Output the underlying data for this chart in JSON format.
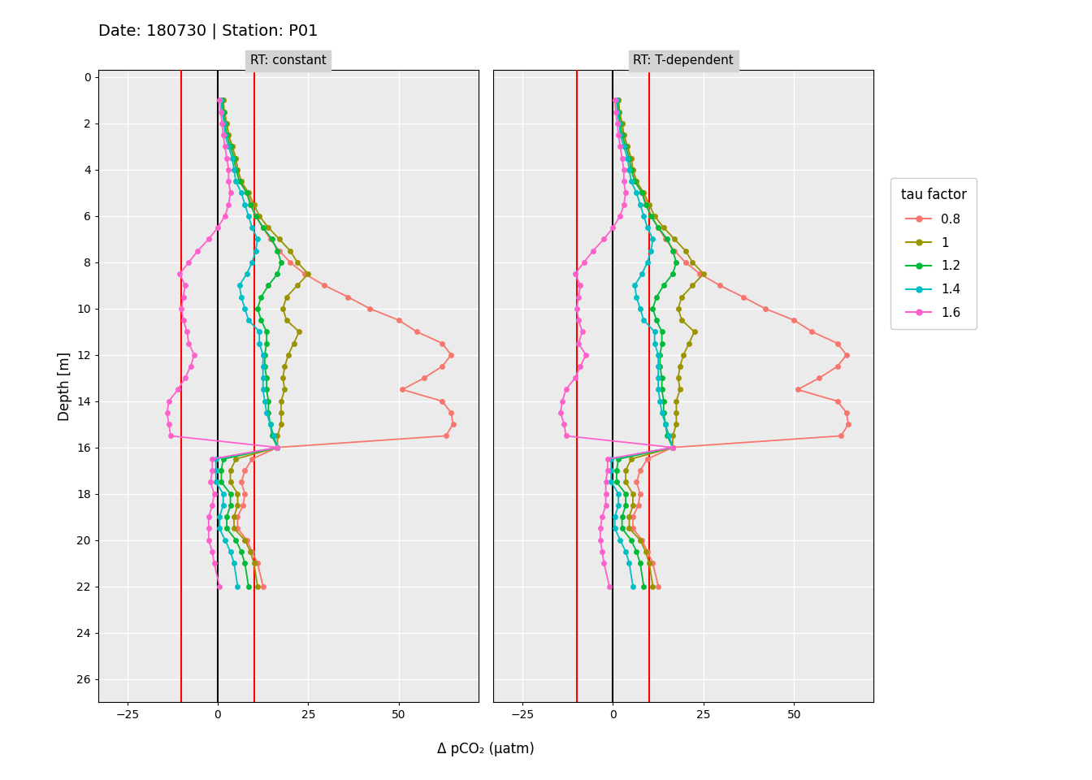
{
  "title": "Date: 180730 | Station: P01",
  "panel_labels": [
    "RT: constant",
    "RT: T-dependent"
  ],
  "ylabel": "Depth [m]",
  "xlabel": "Δ pCO₂ (µatm)",
  "depth": [
    1,
    1.5,
    2,
    2.5,
    3,
    3.5,
    4,
    4.5,
    5,
    5.5,
    6,
    6.5,
    7,
    7.5,
    8,
    8.5,
    9,
    9.5,
    10,
    10.5,
    11,
    11.5,
    12,
    12.5,
    13,
    13.5,
    14,
    14.5,
    15,
    15.5,
    16,
    16.5,
    17,
    17.5,
    18,
    18.5,
    19,
    19.5,
    20,
    20.5,
    21,
    22
  ],
  "ylim": [
    27.0,
    -0.3
  ],
  "xlim": [
    -33,
    72
  ],
  "xticks": [
    -25,
    0,
    25,
    50
  ],
  "yticks": [
    0,
    2,
    4,
    6,
    8,
    10,
    12,
    14,
    16,
    18,
    20,
    22,
    24,
    26
  ],
  "vlines_red": [
    -10,
    10
  ],
  "vline_black": 0,
  "tau_factors": [
    "0.8",
    "1",
    "1.2",
    "1.4",
    "1.6"
  ],
  "colors": [
    "#F8766D",
    "#9B9400",
    "#00BA38",
    "#00BFC4",
    "#FF61CC"
  ],
  "panel_constant": {
    "0.8": [
      1.5,
      1.8,
      2.5,
      3.0,
      4.0,
      5.0,
      5.5,
      6.5,
      8.0,
      9.5,
      10.5,
      12.5,
      14.5,
      17.0,
      20.0,
      24.0,
      29.5,
      36.0,
      42.0,
      50.0,
      55.0,
      62.0,
      64.5,
      62.0,
      57.0,
      51.0,
      62.0,
      64.5,
      65.0,
      63.0,
      16.5,
      9.5,
      7.5,
      6.5,
      7.5,
      7.0,
      5.5,
      5.5,
      8.0,
      9.5,
      11.0,
      12.5
    ],
    "1": [
      1.5,
      1.8,
      2.5,
      3.0,
      4.0,
      5.0,
      5.5,
      6.5,
      8.5,
      10.0,
      11.5,
      14.0,
      17.0,
      20.0,
      22.0,
      25.0,
      22.0,
      19.0,
      18.0,
      19.0,
      22.5,
      21.0,
      19.5,
      18.5,
      18.0,
      18.5,
      17.5,
      17.5,
      17.5,
      16.5,
      16.5,
      5.0,
      3.5,
      3.5,
      5.5,
      5.5,
      4.5,
      4.5,
      7.5,
      9.0,
      10.0,
      11.0
    ],
    "1.2": [
      1.2,
      1.5,
      2.0,
      2.5,
      3.5,
      4.5,
      5.0,
      6.0,
      8.0,
      9.0,
      10.5,
      12.5,
      15.0,
      16.5,
      17.5,
      16.5,
      14.0,
      12.0,
      11.0,
      12.0,
      13.5,
      13.5,
      13.0,
      13.0,
      13.5,
      13.5,
      14.0,
      14.0,
      14.5,
      15.0,
      16.5,
      1.5,
      1.0,
      1.0,
      3.5,
      3.5,
      2.5,
      2.5,
      5.0,
      6.5,
      7.5,
      8.5
    ],
    "1.4": [
      1.0,
      1.2,
      1.8,
      2.0,
      3.0,
      4.0,
      4.5,
      5.0,
      6.5,
      7.5,
      8.5,
      9.5,
      11.0,
      10.5,
      9.5,
      8.0,
      6.0,
      6.5,
      7.5,
      8.5,
      11.5,
      11.5,
      12.5,
      12.5,
      12.5,
      12.5,
      13.0,
      13.5,
      14.5,
      15.5,
      16.5,
      -0.5,
      -0.5,
      -0.5,
      1.5,
      1.5,
      0.5,
      0.5,
      2.0,
      3.5,
      4.5,
      5.5
    ],
    "1.6": [
      0.5,
      0.8,
      1.2,
      1.5,
      2.0,
      2.5,
      3.0,
      3.0,
      3.5,
      3.0,
      2.0,
      0.0,
      -2.5,
      -5.5,
      -8.0,
      -10.5,
      -9.0,
      -9.5,
      -10.0,
      -9.5,
      -8.5,
      -8.0,
      -6.5,
      -7.5,
      -9.0,
      -11.0,
      -13.5,
      -14.0,
      -13.5,
      -13.0,
      16.5,
      -1.5,
      -1.5,
      -2.0,
      -1.0,
      -1.5,
      -2.5,
      -2.5,
      -2.5,
      -1.5,
      -1.0,
      0.5
    ]
  },
  "panel_tdep": {
    "0.8": [
      1.5,
      1.8,
      2.5,
      3.0,
      4.0,
      5.0,
      5.5,
      6.5,
      8.0,
      9.5,
      10.5,
      12.5,
      14.5,
      17.0,
      20.0,
      24.0,
      29.5,
      36.0,
      42.0,
      50.0,
      55.0,
      62.0,
      64.5,
      62.0,
      57.0,
      51.0,
      62.0,
      64.5,
      65.0,
      63.0,
      16.5,
      9.5,
      7.5,
      6.5,
      7.5,
      7.0,
      5.5,
      5.5,
      8.0,
      9.5,
      11.0,
      12.5
    ],
    "1": [
      1.5,
      1.8,
      2.5,
      3.0,
      4.0,
      5.0,
      5.5,
      6.5,
      8.5,
      10.0,
      11.5,
      14.0,
      17.0,
      20.0,
      22.0,
      25.0,
      22.0,
      19.0,
      18.0,
      19.0,
      22.5,
      21.0,
      19.5,
      18.5,
      18.0,
      18.5,
      17.5,
      17.5,
      17.5,
      16.5,
      16.5,
      5.0,
      3.5,
      3.5,
      5.5,
      5.5,
      4.5,
      4.5,
      7.5,
      9.0,
      10.0,
      11.0
    ],
    "1.2": [
      1.2,
      1.5,
      2.0,
      2.5,
      3.5,
      4.5,
      5.0,
      6.0,
      8.0,
      9.0,
      10.5,
      12.5,
      15.0,
      16.5,
      17.5,
      16.5,
      14.0,
      12.0,
      11.0,
      12.0,
      13.5,
      13.5,
      13.0,
      13.0,
      13.5,
      13.5,
      14.0,
      14.0,
      14.5,
      15.0,
      16.5,
      1.5,
      1.0,
      1.0,
      3.5,
      3.5,
      2.5,
      2.5,
      5.0,
      6.5,
      7.5,
      8.5
    ],
    "1.4": [
      1.0,
      1.2,
      1.8,
      2.0,
      3.0,
      4.0,
      4.5,
      5.0,
      6.5,
      7.5,
      8.5,
      9.5,
      11.0,
      10.5,
      9.5,
      8.0,
      6.0,
      6.5,
      7.5,
      8.5,
      11.5,
      11.5,
      12.5,
      12.5,
      12.5,
      12.5,
      13.0,
      13.5,
      14.5,
      15.5,
      16.5,
      -0.5,
      -0.5,
      -0.5,
      1.5,
      1.5,
      0.5,
      0.5,
      2.0,
      3.5,
      4.5,
      5.5
    ],
    "1.6": [
      0.5,
      0.8,
      1.2,
      1.5,
      2.0,
      2.5,
      3.0,
      3.0,
      3.5,
      3.0,
      2.0,
      0.0,
      -2.5,
      -5.5,
      -8.0,
      -10.5,
      -9.0,
      -9.5,
      -10.0,
      -9.5,
      -8.5,
      -9.5,
      -7.5,
      -9.0,
      -10.5,
      -13.0,
      -14.0,
      -14.5,
      -13.5,
      -13.0,
      16.5,
      -1.5,
      -1.5,
      -2.0,
      -2.0,
      -2.0,
      -3.0,
      -3.5,
      -3.5,
      -3.0,
      -2.5,
      -1.0
    ]
  },
  "background_color": "#EBEBEB",
  "panel_title_bg": "#D3D3D3",
  "grid_color": "white",
  "legend_title": "tau factor"
}
